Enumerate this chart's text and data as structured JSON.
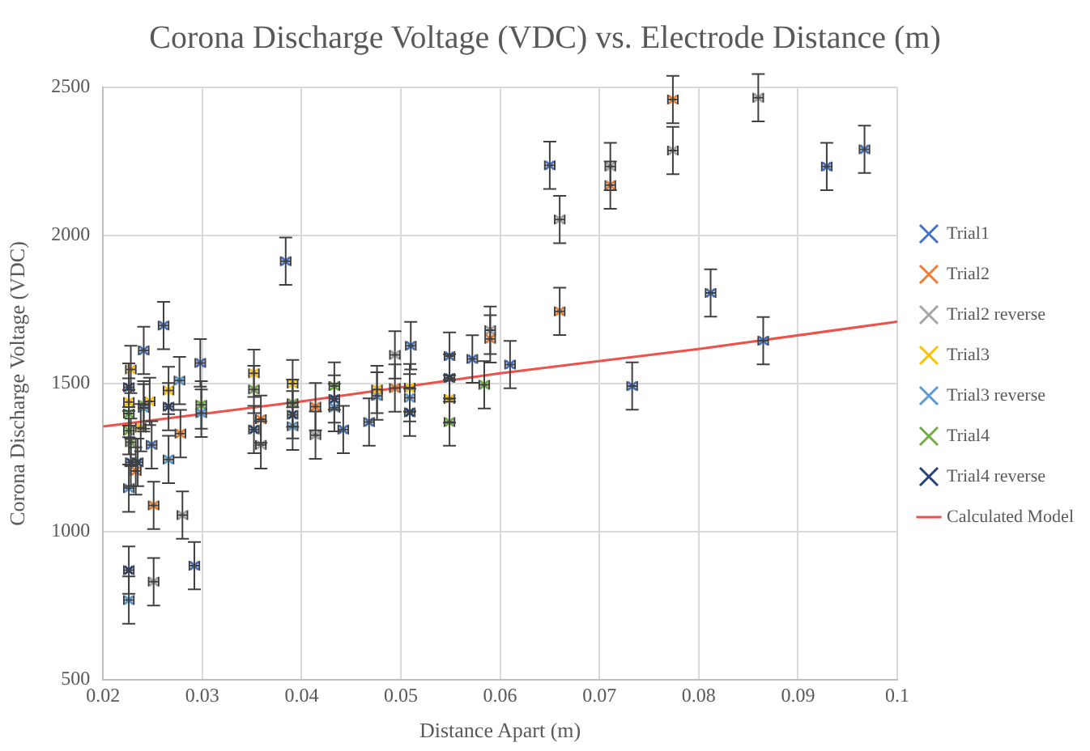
{
  "chart_data": {
    "type": "scatter",
    "title": "Corona Discharge Voltage (VDC) vs. Electrode Distance (m)",
    "xlabel": "Distance Apart (m)",
    "ylabel": "Corona Discharge Voltage (VDC)",
    "xlim": [
      0.02,
      0.1
    ],
    "xticks": [
      0.02,
      0.03,
      0.04,
      0.05,
      0.06,
      0.07,
      0.08,
      0.09,
      0.1
    ],
    "ylim": [
      500,
      2500
    ],
    "yticks": [
      500,
      1000,
      1500,
      2000,
      2500
    ],
    "grid": true,
    "legend": "right",
    "marker": "cross",
    "series": [
      {
        "name": "Trial1",
        "color": "#4472c4",
        "x": [
          0.0384,
          0.0261,
          0.0241,
          0.0298,
          0.0249,
          0.0292,
          0.0442,
          0.0468,
          0.0549,
          0.0572,
          0.051,
          0.061,
          0.065,
          0.0733,
          0.0812,
          0.0865,
          0.0929,
          0.0967
        ],
        "values": [
          1913,
          1696,
          1612,
          1570,
          1293,
          885,
          1345,
          1370,
          1593,
          1583,
          1628,
          1564,
          2237,
          1492,
          1806,
          1645,
          2233,
          2291
        ],
        "errors": [
          80,
          80,
          80,
          80,
          80,
          80,
          80,
          80,
          80,
          80,
          80,
          80,
          80,
          80,
          80,
          80,
          80,
          80
        ],
        "xerrors": [
          0.0005,
          0.0005,
          0.0005,
          0.0005,
          0.0005,
          0.0005,
          0.0005,
          0.0005,
          0.0005,
          0.0005,
          0.0005,
          0.0005,
          0.0005,
          0.0005,
          0.0005,
          0.0005,
          0.0005,
          0.0005
        ]
      },
      {
        "name": "Trial2",
        "color": "#ed7d31",
        "x": [
          0.0359,
          0.0414,
          0.0494,
          0.0278,
          0.0251,
          0.0233,
          0.059,
          0.066,
          0.0711,
          0.0774
        ],
        "values": [
          1380,
          1422,
          1485,
          1331,
          1089,
          1205,
          1651,
          1744,
          2170,
          2459
        ],
        "errors": [
          80,
          80,
          80,
          80,
          80,
          80,
          80,
          80,
          80,
          80
        ],
        "xerrors": [
          0.0005,
          0.0005,
          0.0005,
          0.0005,
          0.0005,
          0.0005,
          0.0005,
          0.0005,
          0.0005,
          0.0005
        ]
      },
      {
        "name": "Trial2 reverse",
        "color": "#a5a5a5",
        "x": [
          0.0359,
          0.0414,
          0.0494,
          0.028,
          0.0251,
          0.066,
          0.0711,
          0.0774,
          0.086,
          0.059
        ],
        "values": [
          1293,
          1326,
          1597,
          1056,
          831,
          2054,
          2233,
          2287,
          2465,
          1680
        ],
        "errors": [
          80,
          80,
          80,
          80,
          80,
          80,
          80,
          80,
          80,
          80
        ],
        "xerrors": [
          0.0005,
          0.0005,
          0.0005,
          0.0005,
          0.0005,
          0.0005,
          0.0005,
          0.0005,
          0.0005,
          0.0005
        ]
      },
      {
        "name": "Trial3",
        "color": "#ffc000",
        "x": [
          0.0228,
          0.0266,
          0.0352,
          0.0391,
          0.0476,
          0.0509,
          0.0549,
          0.0226,
          0.0247,
          0.0238
        ],
        "values": [
          1548,
          1477,
          1535,
          1500,
          1480,
          1486,
          1448,
          1438,
          1440,
          1351
        ],
        "errors": [
          80,
          80,
          80,
          80,
          80,
          80,
          80,
          80,
          80,
          80
        ],
        "xerrors": [
          0.0005,
          0.0005,
          0.0005,
          0.0005,
          0.0005,
          0.0005,
          0.0005,
          0.0005,
          0.0005,
          0.0005
        ]
      },
      {
        "name": "Trial3 reverse",
        "color": "#5b9bd5",
        "x": [
          0.0277,
          0.0299,
          0.0391,
          0.0433,
          0.0476,
          0.0266,
          0.0226,
          0.0226,
          0.0241,
          0.0509
        ],
        "values": [
          1510,
          1400,
          1356,
          1419,
          1458,
          1244,
          769,
          1147,
          1418,
          1452
        ],
        "errors": [
          80,
          80,
          80,
          80,
          80,
          80,
          80,
          80,
          80,
          80
        ],
        "xerrors": [
          0.0005,
          0.0005,
          0.0005,
          0.0005,
          0.0005,
          0.0005,
          0.0005,
          0.0005,
          0.0005,
          0.0005
        ]
      },
      {
        "name": "Trial4",
        "color": "#70ad47",
        "x": [
          0.0352,
          0.0391,
          0.0433,
          0.0299,
          0.0226,
          0.0226,
          0.0228,
          0.0241,
          0.0549,
          0.0584
        ],
        "values": [
          1480,
          1434,
          1492,
          1428,
          1399,
          1341,
          1302,
          1428,
          1370,
          1496
        ],
        "errors": [
          80,
          80,
          80,
          80,
          80,
          80,
          80,
          80,
          80,
          80
        ],
        "xerrors": [
          0.0005,
          0.0005,
          0.0005,
          0.0005,
          0.0005,
          0.0005,
          0.0005,
          0.0005,
          0.0005,
          0.0005
        ]
      },
      {
        "name": "Trial4 reverse",
        "color": "#264478",
        "x": [
          0.0391,
          0.0352,
          0.0433,
          0.0266,
          0.0226,
          0.0228,
          0.0235,
          0.0226,
          0.0509,
          0.0549
        ],
        "values": [
          1395,
          1345,
          1448,
          1422,
          870,
          1234,
          1234,
          1488,
          1403,
          1519
        ],
        "errors": [
          80,
          80,
          80,
          80,
          80,
          80,
          80,
          80,
          80,
          80
        ],
        "xerrors": [
          0.0005,
          0.0005,
          0.0005,
          0.0005,
          0.0005,
          0.0005,
          0.0005,
          0.0005,
          0.0005,
          0.0005
        ]
      },
      {
        "name": "Calculated Model",
        "type": "line",
        "color": "#f0504a",
        "marker": "none",
        "x": [
          0.02,
          0.04,
          0.06,
          0.08,
          0.1
        ],
        "values": [
          1355,
          1440,
          1535,
          1617,
          1709
        ]
      }
    ]
  }
}
